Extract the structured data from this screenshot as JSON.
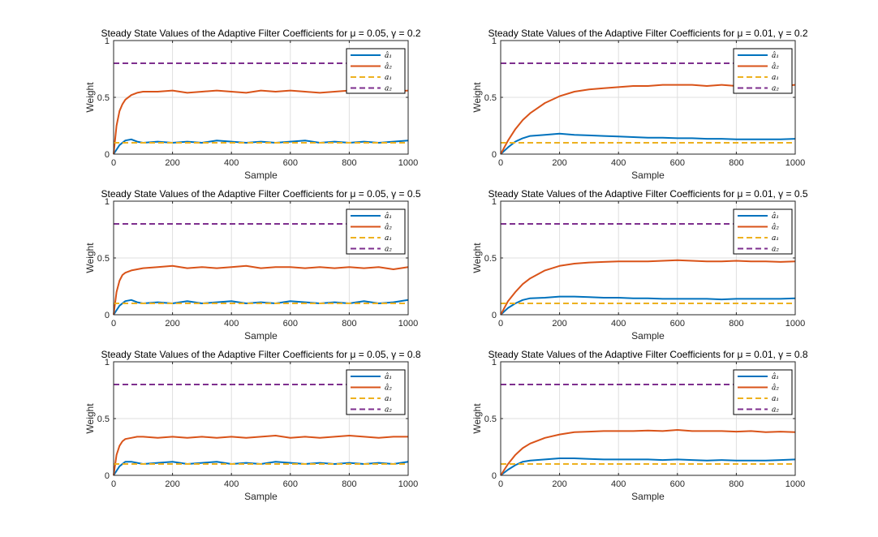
{
  "colors": {
    "a1_hat": "#0072BD",
    "a2_hat": "#D95319",
    "a1": "#EDB120",
    "a2": "#7E2F8E",
    "grid": "#dfdfdf",
    "axis": "#262626"
  },
  "legend_labels": [
    "â₁",
    "â₂",
    "a₁",
    "a₂"
  ],
  "chart_data": [
    {
      "type": "line",
      "title": "Steady State Values of the Adaptive Filter Coefficients for μ = 0.05, γ = 0.2",
      "xlabel": "Sample",
      "ylabel": "Weight",
      "xlim": [
        0,
        1000
      ],
      "ylim": [
        0,
        1
      ],
      "xticks": [
        "0",
        "200",
        "400",
        "600",
        "800",
        "1000"
      ],
      "yticks": [
        "0",
        "0.5",
        "1"
      ],
      "grid": true,
      "legend": "top-right",
      "series": [
        {
          "name": "â₁",
          "color": "#0072BD",
          "x": [
            0,
            20,
            40,
            60,
            80,
            100,
            150,
            200,
            250,
            300,
            350,
            400,
            450,
            500,
            550,
            600,
            650,
            700,
            750,
            800,
            850,
            900,
            950,
            1000
          ],
          "values": [
            0,
            0.08,
            0.12,
            0.13,
            0.11,
            0.1,
            0.11,
            0.1,
            0.11,
            0.1,
            0.12,
            0.11,
            0.1,
            0.11,
            0.1,
            0.11,
            0.12,
            0.1,
            0.11,
            0.1,
            0.11,
            0.1,
            0.11,
            0.12
          ]
        },
        {
          "name": "â₂",
          "color": "#D95319",
          "x": [
            0,
            10,
            20,
            30,
            40,
            60,
            80,
            100,
            150,
            200,
            250,
            300,
            350,
            400,
            450,
            500,
            550,
            600,
            650,
            700,
            750,
            800,
            850,
            900,
            950,
            1000
          ],
          "values": [
            0,
            0.25,
            0.38,
            0.44,
            0.48,
            0.52,
            0.54,
            0.55,
            0.55,
            0.56,
            0.54,
            0.55,
            0.56,
            0.55,
            0.54,
            0.56,
            0.55,
            0.56,
            0.55,
            0.54,
            0.55,
            0.56,
            0.55,
            0.54,
            0.55,
            0.56
          ]
        },
        {
          "name": "a₁",
          "color": "#EDB120",
          "x": [
            0,
            1000
          ],
          "values": [
            0.1,
            0.1
          ]
        },
        {
          "name": "a₂",
          "color": "#7E2F8E",
          "x": [
            0,
            1000
          ],
          "values": [
            0.8,
            0.8
          ]
        }
      ]
    },
    {
      "type": "line",
      "title": "Steady State Values of the Adaptive Filter Coefficients for μ = 0.01, γ = 0.2",
      "xlabel": "Sample",
      "ylabel": "Weight",
      "xlim": [
        0,
        1000
      ],
      "ylim": [
        0,
        1
      ],
      "xticks": [
        "0",
        "200",
        "400",
        "600",
        "800",
        "1000"
      ],
      "yticks": [
        "0",
        "0.5",
        "1"
      ],
      "grid": true,
      "legend": "top-right",
      "series": [
        {
          "name": "â₁",
          "color": "#0072BD",
          "x": [
            0,
            25,
            50,
            75,
            100,
            150,
            200,
            250,
            300,
            350,
            400,
            450,
            500,
            550,
            600,
            650,
            700,
            750,
            800,
            850,
            900,
            950,
            1000
          ],
          "values": [
            0,
            0.06,
            0.11,
            0.14,
            0.16,
            0.17,
            0.18,
            0.17,
            0.165,
            0.16,
            0.155,
            0.15,
            0.145,
            0.145,
            0.14,
            0.14,
            0.135,
            0.135,
            0.13,
            0.13,
            0.13,
            0.13,
            0.135
          ]
        },
        {
          "name": "â₂",
          "color": "#D95319",
          "x": [
            0,
            25,
            50,
            75,
            100,
            150,
            200,
            250,
            300,
            350,
            400,
            450,
            500,
            550,
            600,
            650,
            700,
            750,
            800,
            850,
            900,
            950,
            1000
          ],
          "values": [
            0,
            0.12,
            0.22,
            0.3,
            0.36,
            0.45,
            0.51,
            0.55,
            0.57,
            0.58,
            0.59,
            0.6,
            0.6,
            0.61,
            0.61,
            0.61,
            0.6,
            0.61,
            0.6,
            0.6,
            0.61,
            0.6,
            0.61
          ]
        },
        {
          "name": "a₁",
          "color": "#EDB120",
          "x": [
            0,
            1000
          ],
          "values": [
            0.1,
            0.1
          ]
        },
        {
          "name": "a₂",
          "color": "#7E2F8E",
          "x": [
            0,
            1000
          ],
          "values": [
            0.8,
            0.8
          ]
        }
      ]
    },
    {
      "type": "line",
      "title": "Steady State Values of the Adaptive Filter Coefficients for μ = 0.05, γ = 0.5",
      "xlabel": "Sample",
      "ylabel": "Weight",
      "xlim": [
        0,
        1000
      ],
      "ylim": [
        0,
        1
      ],
      "xticks": [
        "0",
        "200",
        "400",
        "600",
        "800",
        "1000"
      ],
      "yticks": [
        "0",
        "0.5",
        "1"
      ],
      "grid": true,
      "legend": "top-right",
      "series": [
        {
          "name": "â₁",
          "color": "#0072BD",
          "x": [
            0,
            20,
            40,
            60,
            80,
            100,
            150,
            200,
            250,
            300,
            350,
            400,
            450,
            500,
            550,
            600,
            650,
            700,
            750,
            800,
            850,
            900,
            950,
            1000
          ],
          "values": [
            0,
            0.08,
            0.12,
            0.13,
            0.11,
            0.1,
            0.11,
            0.1,
            0.12,
            0.1,
            0.11,
            0.12,
            0.1,
            0.11,
            0.1,
            0.12,
            0.11,
            0.1,
            0.11,
            0.1,
            0.12,
            0.1,
            0.11,
            0.13
          ]
        },
        {
          "name": "â₂",
          "color": "#D95319",
          "x": [
            0,
            10,
            20,
            30,
            40,
            60,
            80,
            100,
            150,
            200,
            250,
            300,
            350,
            400,
            450,
            500,
            550,
            600,
            650,
            700,
            750,
            800,
            850,
            900,
            950,
            1000
          ],
          "values": [
            0,
            0.2,
            0.3,
            0.35,
            0.37,
            0.39,
            0.4,
            0.41,
            0.42,
            0.43,
            0.41,
            0.42,
            0.41,
            0.42,
            0.43,
            0.41,
            0.42,
            0.42,
            0.41,
            0.42,
            0.41,
            0.42,
            0.41,
            0.42,
            0.4,
            0.42
          ]
        },
        {
          "name": "a₁",
          "color": "#EDB120",
          "x": [
            0,
            1000
          ],
          "values": [
            0.1,
            0.1
          ]
        },
        {
          "name": "a₂",
          "color": "#7E2F8E",
          "x": [
            0,
            1000
          ],
          "values": [
            0.8,
            0.8
          ]
        }
      ]
    },
    {
      "type": "line",
      "title": "Steady State Values of the Adaptive Filter Coefficients for μ = 0.01, γ = 0.5",
      "xlabel": "Sample",
      "ylabel": "Weight",
      "xlim": [
        0,
        1000
      ],
      "ylim": [
        0,
        1
      ],
      "xticks": [
        "0",
        "200",
        "400",
        "600",
        "800",
        "1000"
      ],
      "yticks": [
        "0",
        "0.5",
        "1"
      ],
      "grid": true,
      "legend": "top-right",
      "series": [
        {
          "name": "â₁",
          "color": "#0072BD",
          "x": [
            0,
            25,
            50,
            75,
            100,
            150,
            200,
            250,
            300,
            350,
            400,
            450,
            500,
            550,
            600,
            650,
            700,
            750,
            800,
            850,
            900,
            950,
            1000
          ],
          "values": [
            0,
            0.06,
            0.1,
            0.13,
            0.145,
            0.15,
            0.16,
            0.16,
            0.155,
            0.15,
            0.15,
            0.145,
            0.145,
            0.14,
            0.14,
            0.14,
            0.14,
            0.135,
            0.14,
            0.14,
            0.14,
            0.14,
            0.145
          ]
        },
        {
          "name": "â₂",
          "color": "#D95319",
          "x": [
            0,
            25,
            50,
            75,
            100,
            150,
            200,
            250,
            300,
            350,
            400,
            450,
            500,
            550,
            600,
            650,
            700,
            750,
            800,
            850,
            900,
            950,
            1000
          ],
          "values": [
            0,
            0.12,
            0.2,
            0.27,
            0.32,
            0.39,
            0.43,
            0.45,
            0.46,
            0.465,
            0.47,
            0.47,
            0.47,
            0.475,
            0.48,
            0.475,
            0.47,
            0.47,
            0.475,
            0.47,
            0.47,
            0.465,
            0.47
          ]
        },
        {
          "name": "a₁",
          "color": "#EDB120",
          "x": [
            0,
            1000
          ],
          "values": [
            0.1,
            0.1
          ]
        },
        {
          "name": "a₂",
          "color": "#7E2F8E",
          "x": [
            0,
            1000
          ],
          "values": [
            0.8,
            0.8
          ]
        }
      ]
    },
    {
      "type": "line",
      "title": "Steady State Values of the Adaptive Filter Coefficients for μ = 0.05, γ = 0.8",
      "xlabel": "Sample",
      "ylabel": "Weight",
      "xlim": [
        0,
        1000
      ],
      "ylim": [
        0,
        1
      ],
      "xticks": [
        "0",
        "200",
        "400",
        "600",
        "800",
        "1000"
      ],
      "yticks": [
        "0",
        "0.5",
        "1"
      ],
      "grid": true,
      "legend": "top-right",
      "series": [
        {
          "name": "â₁",
          "color": "#0072BD",
          "x": [
            0,
            20,
            40,
            60,
            80,
            100,
            150,
            200,
            250,
            300,
            350,
            400,
            450,
            500,
            550,
            600,
            650,
            700,
            750,
            800,
            850,
            900,
            950,
            1000
          ],
          "values": [
            0,
            0.08,
            0.12,
            0.12,
            0.11,
            0.1,
            0.11,
            0.12,
            0.1,
            0.11,
            0.12,
            0.1,
            0.11,
            0.1,
            0.12,
            0.11,
            0.1,
            0.11,
            0.1,
            0.11,
            0.1,
            0.11,
            0.1,
            0.12
          ]
        },
        {
          "name": "â₂",
          "color": "#D95319",
          "x": [
            0,
            10,
            20,
            30,
            40,
            60,
            80,
            100,
            150,
            200,
            250,
            300,
            350,
            400,
            450,
            500,
            550,
            600,
            650,
            700,
            750,
            800,
            850,
            900,
            950,
            1000
          ],
          "values": [
            0,
            0.18,
            0.26,
            0.3,
            0.32,
            0.33,
            0.34,
            0.34,
            0.33,
            0.34,
            0.33,
            0.34,
            0.33,
            0.34,
            0.33,
            0.34,
            0.35,
            0.33,
            0.34,
            0.33,
            0.34,
            0.35,
            0.34,
            0.33,
            0.34,
            0.34
          ]
        },
        {
          "name": "a₁",
          "color": "#EDB120",
          "x": [
            0,
            1000
          ],
          "values": [
            0.1,
            0.1
          ]
        },
        {
          "name": "a₂",
          "color": "#7E2F8E",
          "x": [
            0,
            1000
          ],
          "values": [
            0.8,
            0.8
          ]
        }
      ]
    },
    {
      "type": "line",
      "title": "Steady State Values of the Adaptive Filter Coefficients for μ = 0.01, γ = 0.8",
      "xlabel": "Sample",
      "ylabel": "Weight",
      "xlim": [
        0,
        1000
      ],
      "ylim": [
        0,
        1
      ],
      "xticks": [
        "0",
        "200",
        "400",
        "600",
        "800",
        "1000"
      ],
      "yticks": [
        "0",
        "0.5",
        "1"
      ],
      "grid": true,
      "legend": "top-right",
      "series": [
        {
          "name": "â₁",
          "color": "#0072BD",
          "x": [
            0,
            25,
            50,
            75,
            100,
            150,
            200,
            250,
            300,
            350,
            400,
            450,
            500,
            550,
            600,
            650,
            700,
            750,
            800,
            850,
            900,
            950,
            1000
          ],
          "values": [
            0,
            0.05,
            0.09,
            0.12,
            0.13,
            0.14,
            0.15,
            0.15,
            0.145,
            0.14,
            0.14,
            0.14,
            0.14,
            0.135,
            0.14,
            0.135,
            0.13,
            0.135,
            0.13,
            0.13,
            0.13,
            0.135,
            0.14
          ]
        },
        {
          "name": "â₂",
          "color": "#D95319",
          "x": [
            0,
            25,
            50,
            75,
            100,
            150,
            200,
            250,
            300,
            350,
            400,
            450,
            500,
            550,
            600,
            650,
            700,
            750,
            800,
            850,
            900,
            950,
            1000
          ],
          "values": [
            0,
            0.1,
            0.18,
            0.24,
            0.28,
            0.33,
            0.36,
            0.38,
            0.385,
            0.39,
            0.39,
            0.39,
            0.395,
            0.39,
            0.4,
            0.39,
            0.39,
            0.39,
            0.385,
            0.39,
            0.38,
            0.385,
            0.38
          ]
        },
        {
          "name": "a₁",
          "color": "#EDB120",
          "x": [
            0,
            1000
          ],
          "values": [
            0.1,
            0.1
          ]
        },
        {
          "name": "a₂",
          "color": "#7E2F8E",
          "x": [
            0,
            1000
          ],
          "values": [
            0.8,
            0.8
          ]
        }
      ]
    }
  ]
}
